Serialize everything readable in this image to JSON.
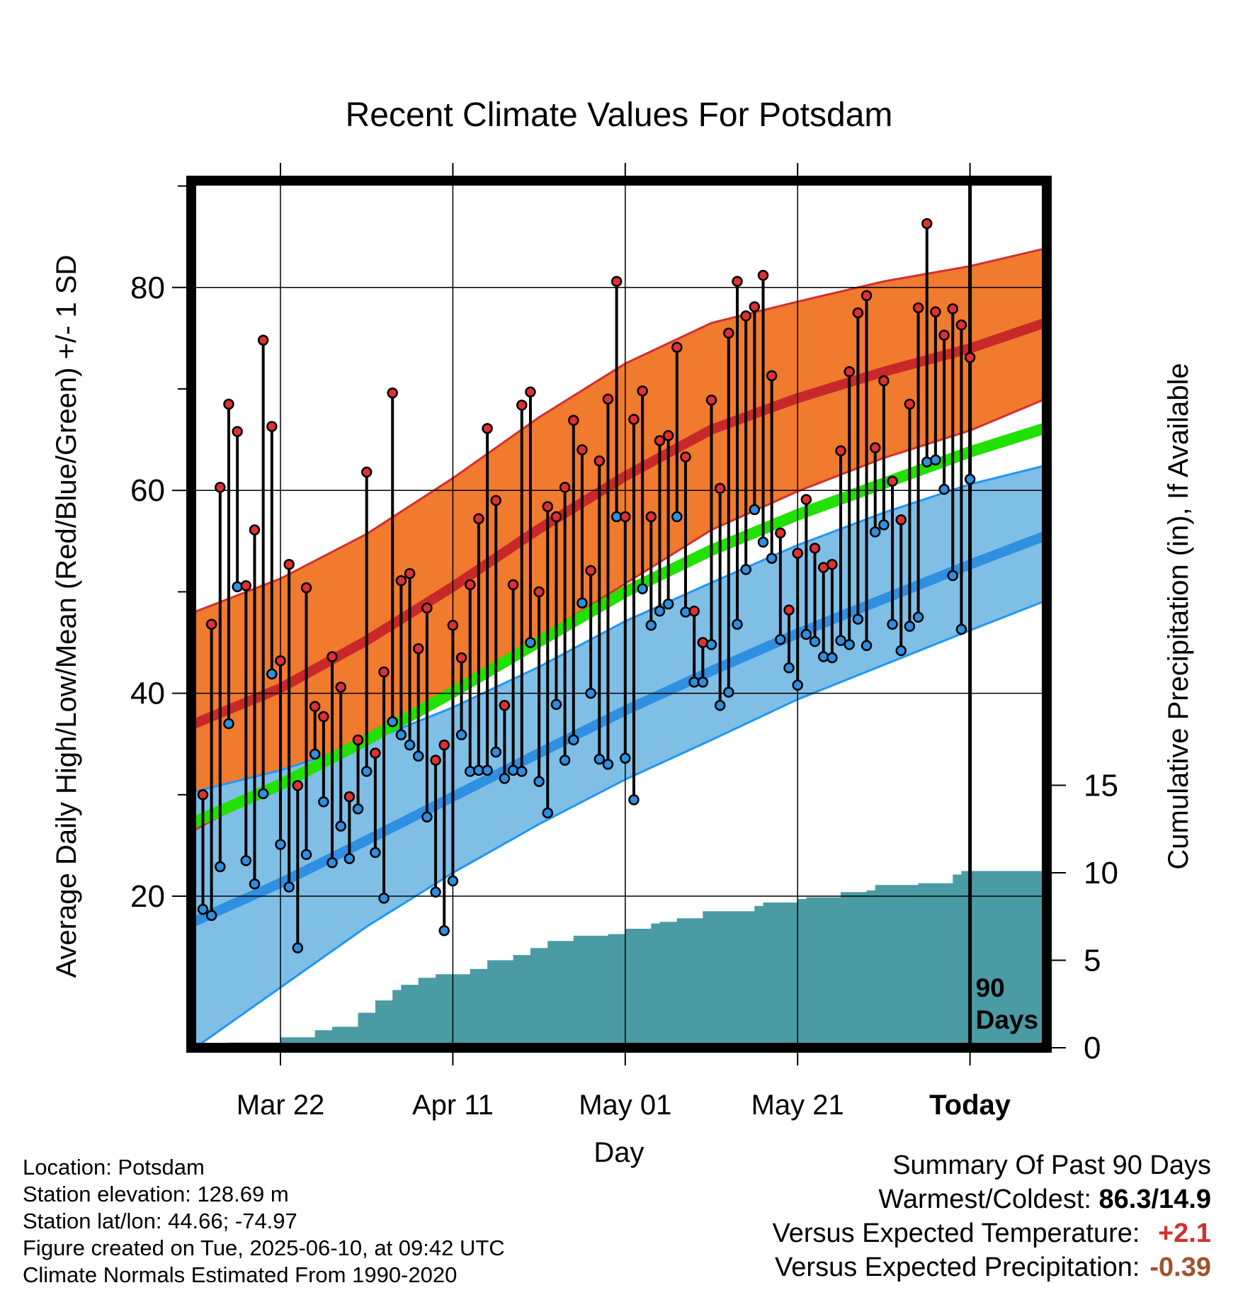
{
  "chart_data": {
    "type": "line",
    "title": "Recent Climate Values For Potsdam",
    "xlabel": "Day",
    "ylabel": "Average Daily High/Low/Mean (Red/Blue/Green) +/- 1 SD",
    "y2label": "Cumulative Precipitation (in), If Available",
    "ylim": [
      10,
      95
    ],
    "y2lim": [
      0,
      40
    ],
    "yticks": [
      20,
      40,
      60,
      80
    ],
    "y2ticks": [
      0,
      5,
      10,
      15
    ],
    "xlim": [
      -90,
      8
    ],
    "xticks": [
      {
        "x": -80,
        "label": "Mar 22"
      },
      {
        "x": -60,
        "label": "Apr 11"
      },
      {
        "x": -40,
        "label": "May 01"
      },
      {
        "x": -20,
        "label": "May 21"
      },
      {
        "x": 0,
        "label": "Today"
      }
    ],
    "today_marker": {
      "x": 0,
      "label_line1": "90",
      "label_line2": "Days"
    },
    "grid": true,
    "colors": {
      "high_band": "#f07a2e",
      "high_mean": "#c8282a",
      "high_band_edge": "#d32f2f",
      "low_band": "#7fbfe6",
      "low_mean": "#2f8fe0",
      "low_band_edge": "#2196f3",
      "mean": "#22e000",
      "precip": "#4a9ba3",
      "high_point": "#e03030",
      "low_point": "#2f8fe0"
    },
    "normals": {
      "x": [
        -90,
        -80,
        -70,
        -60,
        -50,
        -40,
        -30,
        -20,
        -10,
        0,
        9
      ],
      "high_mean": [
        37,
        40.5,
        45.2,
        50.5,
        56.2,
        61.4,
        66,
        69.1,
        71.7,
        74,
        76.6
      ],
      "high_upper": [
        48,
        51.3,
        55.7,
        61.2,
        67.2,
        72.5,
        76.5,
        78.6,
        80.6,
        82.1,
        83.9
      ],
      "high_lower": [
        26.5,
        31.2,
        35.6,
        40.3,
        45.5,
        50.8,
        56.1,
        59.9,
        63.2,
        65.9,
        69.1
      ],
      "low_mean": [
        17.5,
        21.3,
        25.5,
        29.8,
        34.1,
        38.3,
        42.2,
        45.9,
        49.3,
        52.7,
        55.6
      ],
      "low_upper": [
        30.3,
        32.4,
        35.2,
        38.6,
        42.6,
        47.1,
        50.9,
        54.6,
        57.8,
        60.6,
        62.5
      ],
      "low_lower": [
        5,
        11,
        17,
        22.3,
        27.1,
        31.5,
        35.4,
        39.4,
        42.8,
        46.2,
        49.2
      ],
      "mean": [
        27.3,
        31,
        35.4,
        40.1,
        45.1,
        50,
        54.1,
        57.6,
        60.7,
        63.8,
        66.2
      ]
    },
    "daily": {
      "x_start": -89,
      "high": [
        30,
        46.8,
        60.3,
        68.5,
        65.8,
        50.6,
        56.1,
        74.8,
        66.3,
        43.2,
        52.7,
        30.9,
        50.4,
        38.7,
        37.7,
        43.6,
        40.6,
        29.8,
        35.4,
        61.8,
        34.1,
        42.1,
        69.6,
        51.1,
        51.8,
        44.4,
        48.4,
        33.4,
        34.9,
        46.7,
        43.5,
        50.7,
        57.2,
        66.1,
        59.0,
        38.8,
        50.7,
        68.4,
        69.7,
        50.0,
        58.4,
        57.4,
        60.3,
        66.9,
        64.0,
        52.1,
        62.9,
        69.0,
        80.6,
        57.4,
        67.0,
        69.8,
        57.4,
        64.9,
        65.4,
        74.1,
        63.3,
        48.1,
        45.0,
        68.9,
        60.2,
        75.5,
        80.6,
        77.2,
        78.1,
        81.2,
        71.3,
        55.8,
        48.2,
        53.8,
        59.1,
        54.3,
        52.4,
        52.7,
        63.9,
        71.7,
        77.5,
        79.2,
        64.2,
        70.8,
        60.9,
        57.1,
        68.5,
        78.0,
        86.3,
        77.6,
        75.3,
        77.9,
        76.3,
        73.1
      ],
      "low": [
        18.7,
        18.1,
        22.9,
        37.0,
        50.5,
        23.5,
        21.2,
        30.1,
        41.9,
        25.1,
        20.9,
        14.9,
        24.1,
        34.0,
        29.3,
        23.3,
        26.9,
        23.7,
        28.6,
        32.3,
        24.3,
        19.8,
        37.2,
        35.9,
        34.9,
        33.8,
        27.8,
        20.4,
        16.6,
        21.5,
        35.9,
        32.3,
        32.4,
        32.4,
        34.2,
        31.6,
        32.4,
        32.3,
        45.0,
        31.3,
        28.2,
        38.9,
        33.4,
        35.4,
        48.9,
        40.0,
        33.5,
        33.0,
        57.4,
        33.6,
        29.5,
        50.3,
        46.7,
        48.1,
        48.8,
        57.4,
        48.0,
        41.1,
        41.1,
        44.8,
        38.8,
        40.1,
        46.8,
        52.2,
        58.1,
        54.9,
        53.3,
        45.3,
        42.5,
        40.8,
        45.8,
        45.1,
        43.6,
        43.5,
        45.2,
        44.8,
        47.3,
        44.7,
        55.9,
        56.6,
        46.8,
        44.2,
        46.6,
        47.5,
        62.8,
        63.0,
        60.1,
        51.6,
        46.3,
        61.1
      ]
    },
    "precip": {
      "x": [
        -86,
        -80,
        -76,
        -74,
        -71,
        -69,
        -67,
        -66,
        -64,
        -62,
        -58,
        -56,
        -53,
        -51,
        -49,
        -46,
        -42,
        -40,
        -37,
        -36,
        -34,
        -31,
        -27,
        -25,
        -24,
        -22,
        -20,
        -19,
        -15,
        -12,
        -11,
        -6,
        -5,
        -2,
        -1,
        9
      ],
      "cum": [
        0.3,
        0.6,
        1.0,
        1.2,
        2.0,
        2.7,
        3.3,
        3.6,
        4.0,
        4.2,
        4.5,
        5.0,
        5.3,
        5.7,
        6.1,
        6.4,
        6.5,
        6.8,
        7.1,
        7.2,
        7.4,
        7.8,
        7.8,
        8.1,
        8.3,
        8.3,
        8.5,
        8.6,
        8.9,
        9.0,
        9.3,
        9.4,
        9.4,
        9.9,
        10.1,
        10.1
      ]
    }
  },
  "info": {
    "location": "Location: Potsdam",
    "elevation": "Station elevation: 128.69 m",
    "latlon": "Station lat/lon: 44.66; -74.97",
    "created": "Figure created on Tue, 2025-06-10, at 09:42 UTC",
    "normals": "Climate Normals Estimated From 1990-2020"
  },
  "summary": {
    "title": "Summary Of Past 90 Days",
    "warm_cold_label": "Warmest/Coldest:",
    "warm_cold_value": "86.3/14.9",
    "temp_label": "Versus Expected Temperature:",
    "temp_value": "+2.1",
    "temp_color": "#d32f2f",
    "precip_label": "Versus Expected Precipitation:",
    "precip_value": "-0.39",
    "precip_color": "#a0522d"
  }
}
